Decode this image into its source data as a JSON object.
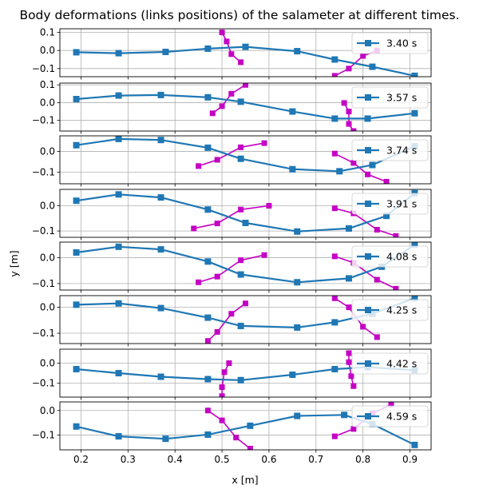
{
  "chart_data": {
    "type": "line",
    "title": "Body deformations (links positions) of the salameter at different times.",
    "xlabel": "x [m]",
    "ylabel": "y [m]",
    "xlim": [
      0.155,
      0.945
    ],
    "xticks": [
      "0.2",
      "0.3",
      "0.4",
      "0.5",
      "0.6",
      "0.7",
      "0.8",
      "0.9"
    ],
    "grid": true,
    "legend_position": "upper right",
    "colors": {
      "body": "#1f77b4",
      "links": "#c400c4"
    },
    "panels": [
      {
        "label": "3.40 s",
        "ylim": [
          -0.145,
          0.12
        ],
        "yticks": [
          "0.1",
          "0.0",
          "−0.1"
        ],
        "body": [
          [
            0.19,
            -0.01
          ],
          [
            0.28,
            -0.015
          ],
          [
            0.38,
            -0.008
          ],
          [
            0.47,
            0.01
          ],
          [
            0.55,
            0.02
          ],
          [
            0.66,
            -0.004
          ],
          [
            0.74,
            -0.05
          ],
          [
            0.82,
            -0.09
          ],
          [
            0.91,
            -0.14
          ]
        ],
        "links": [
          [
            [
              0.5,
              0.1
            ],
            [
              0.51,
              0.05
            ],
            [
              0.52,
              -0.02
            ],
            [
              0.54,
              -0.065
            ]
          ],
          [
            [
              0.74,
              -0.14
            ],
            [
              0.77,
              -0.1
            ],
            [
              0.8,
              -0.03
            ],
            [
              0.83,
              0.0
            ]
          ]
        ]
      },
      {
        "label": "3.57 s",
        "ylim": [
          -0.16,
          0.11
        ],
        "yticks": [
          "0.1",
          "0.0",
          "−0.1"
        ],
        "body": [
          [
            0.19,
            0.02
          ],
          [
            0.28,
            0.04
          ],
          [
            0.37,
            0.043
          ],
          [
            0.47,
            0.03
          ],
          [
            0.54,
            0.005
          ],
          [
            0.65,
            -0.05
          ],
          [
            0.74,
            -0.09
          ],
          [
            0.81,
            -0.09
          ],
          [
            0.91,
            -0.06
          ]
        ],
        "links": [
          [
            [
              0.48,
              -0.06
            ],
            [
              0.5,
              -0.02
            ],
            [
              0.52,
              0.05
            ],
            [
              0.55,
              0.1
            ]
          ],
          [
            [
              0.76,
              -0.002
            ],
            [
              0.77,
              -0.05
            ],
            [
              0.77,
              -0.12
            ],
            [
              0.78,
              -0.16
            ]
          ]
        ]
      },
      {
        "label": "3.74 s",
        "ylim": [
          -0.155,
          0.075
        ],
        "yticks": [
          "0.0",
          "−0.1"
        ],
        "body": [
          [
            0.19,
            0.03
          ],
          [
            0.28,
            0.06
          ],
          [
            0.37,
            0.055
          ],
          [
            0.47,
            0.018
          ],
          [
            0.54,
            -0.035
          ],
          [
            0.65,
            -0.085
          ],
          [
            0.75,
            -0.095
          ],
          [
            0.82,
            -0.065
          ],
          [
            0.91,
            0.025
          ]
        ],
        "links": [
          [
            [
              0.45,
              -0.07
            ],
            [
              0.49,
              -0.04
            ],
            [
              0.54,
              0.02
            ],
            [
              0.59,
              0.04
            ]
          ],
          [
            [
              0.74,
              -0.01
            ],
            [
              0.78,
              -0.055
            ],
            [
              0.81,
              -0.11
            ],
            [
              0.85,
              -0.145
            ]
          ]
        ]
      },
      {
        "label": "3.91 s",
        "ylim": [
          -0.125,
          0.065
        ],
        "yticks": [
          "0.0",
          "−0.1"
        ],
        "body": [
          [
            0.19,
            0.02
          ],
          [
            0.28,
            0.045
          ],
          [
            0.37,
            0.033
          ],
          [
            0.47,
            -0.015
          ],
          [
            0.55,
            -0.068
          ],
          [
            0.66,
            -0.102
          ],
          [
            0.77,
            -0.09
          ],
          [
            0.85,
            -0.04
          ],
          [
            0.91,
            0.05
          ]
        ],
        "links": [
          [
            [
              0.44,
              -0.09
            ],
            [
              0.49,
              -0.07
            ],
            [
              0.54,
              -0.015
            ],
            [
              0.6,
              0.0
            ]
          ],
          [
            [
              0.74,
              -0.01
            ],
            [
              0.78,
              -0.03
            ],
            [
              0.83,
              -0.095
            ],
            [
              0.87,
              -0.12
            ]
          ]
        ]
      },
      {
        "label": "4.08 s",
        "ylim": [
          -0.125,
          0.06
        ],
        "yticks": [
          "0.0",
          "−0.1"
        ],
        "body": [
          [
            0.19,
            0.02
          ],
          [
            0.28,
            0.042
          ],
          [
            0.37,
            0.032
          ],
          [
            0.47,
            -0.015
          ],
          [
            0.54,
            -0.065
          ],
          [
            0.66,
            -0.095
          ],
          [
            0.77,
            -0.08
          ],
          [
            0.84,
            -0.035
          ],
          [
            0.91,
            0.05
          ]
        ],
        "links": [
          [
            [
              0.45,
              -0.095
            ],
            [
              0.49,
              -0.073
            ],
            [
              0.54,
              -0.01
            ],
            [
              0.59,
              0.01
            ]
          ],
          [
            [
              0.74,
              0.005
            ],
            [
              0.78,
              -0.02
            ],
            [
              0.83,
              -0.085
            ],
            [
              0.87,
              -0.12
            ]
          ]
        ]
      },
      {
        "label": "4.25 s",
        "ylim": [
          -0.14,
          0.045
        ],
        "yticks": [
          "0.0",
          "−0.1"
        ],
        "body": [
          [
            0.19,
            0.01
          ],
          [
            0.28,
            0.015
          ],
          [
            0.37,
            -0.003
          ],
          [
            0.47,
            -0.04
          ],
          [
            0.54,
            -0.072
          ],
          [
            0.66,
            -0.078
          ],
          [
            0.74,
            -0.058
          ],
          [
            0.82,
            -0.025
          ],
          [
            0.91,
            0.035
          ]
        ],
        "links": [
          [
            [
              0.47,
              -0.13
            ],
            [
              0.49,
              -0.095
            ],
            [
              0.52,
              -0.025
            ],
            [
              0.55,
              0.015
            ]
          ],
          [
            [
              0.74,
              0.035
            ],
            [
              0.77,
              0.0
            ],
            [
              0.8,
              -0.075
            ],
            [
              0.83,
              -0.115
            ]
          ]
        ]
      },
      {
        "label": "4.42 s",
        "ylim": [
          -0.17,
          0.07
        ],
        "yticks": [
          "0.0",
          "−0.1"
        ],
        "body": [
          [
            0.19,
            -0.03
          ],
          [
            0.28,
            -0.05
          ],
          [
            0.37,
            -0.068
          ],
          [
            0.47,
            -0.08
          ],
          [
            0.54,
            -0.085
          ],
          [
            0.65,
            -0.058
          ],
          [
            0.74,
            -0.03
          ],
          [
            0.81,
            -0.02
          ],
          [
            0.91,
            -0.035
          ]
        ],
        "links": [
          [
            [
              0.5,
              -0.165
            ],
            [
              0.5,
              -0.12
            ],
            [
              0.505,
              -0.045
            ],
            [
              0.515,
              0.0
            ]
          ],
          [
            [
              0.77,
              0.05
            ],
            [
              0.77,
              0.005
            ],
            [
              0.775,
              -0.065
            ],
            [
              0.78,
              -0.115
            ]
          ]
        ]
      },
      {
        "label": "4.59 s",
        "ylim": [
          -0.16,
          0.035
        ],
        "yticks": [
          "0.0",
          "−0.1"
        ],
        "body": [
          [
            0.19,
            -0.065
          ],
          [
            0.28,
            -0.105
          ],
          [
            0.38,
            -0.115
          ],
          [
            0.47,
            -0.098
          ],
          [
            0.56,
            -0.062
          ],
          [
            0.66,
            -0.022
          ],
          [
            0.76,
            -0.018
          ],
          [
            0.82,
            -0.055
          ],
          [
            0.91,
            -0.14
          ]
        ],
        "links": [
          [
            [
              0.47,
              0.0
            ],
            [
              0.5,
              -0.04
            ],
            [
              0.53,
              -0.11
            ],
            [
              0.56,
              -0.155
            ]
          ],
          [
            [
              0.74,
              -0.105
            ],
            [
              0.78,
              -0.075
            ],
            [
              0.82,
              -0.012
            ],
            [
              0.86,
              0.025
            ]
          ]
        ]
      }
    ]
  }
}
